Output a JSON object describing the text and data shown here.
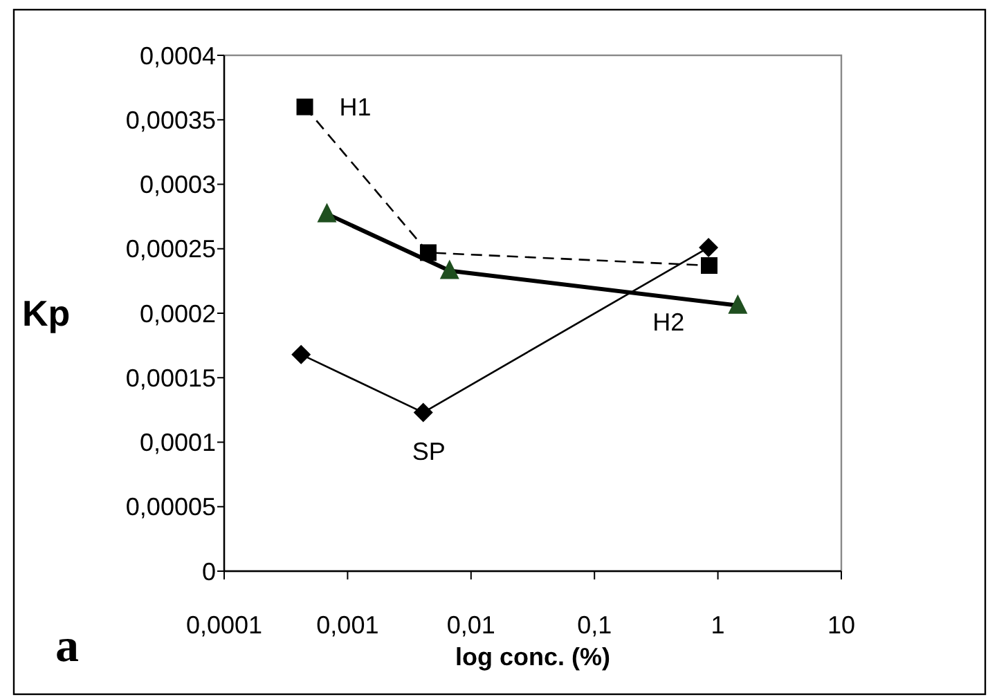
{
  "chart_data": {
    "type": "line",
    "xlabel": "log conc. (%)",
    "ylabel": "Kp",
    "log": "x",
    "xlim": [
      0.0001,
      10
    ],
    "ylim": [
      0,
      0.0004
    ],
    "xticks": [
      {
        "value": 0.0001,
        "label": "0,0001"
      },
      {
        "value": 0.001,
        "label": "0,001"
      },
      {
        "value": 0.01,
        "label": "0,01"
      },
      {
        "value": 0.1,
        "label": "0,1"
      },
      1,
      10
    ],
    "yticks": [
      0,
      {
        "value": 5e-05,
        "label": "0,00005"
      },
      {
        "value": 0.0001,
        "label": "0,0001"
      },
      {
        "value": 0.00015,
        "label": "0,00015"
      },
      {
        "value": 0.0002,
        "label": "0,0002"
      },
      {
        "value": 0.00025,
        "label": "0,00025"
      },
      {
        "value": 0.0003,
        "label": "0,0003"
      },
      {
        "value": 0.00035,
        "label": "0,00035"
      },
      {
        "value": 0.0004,
        "label": "0,0004"
      }
    ],
    "grid": false,
    "series": [
      {
        "name": "H1",
        "color": "#000000",
        "marker": "square",
        "line_style": "dashed",
        "x": [
          0.00045,
          0.0045,
          0.85
        ],
        "values": [
          0.00036,
          0.000247,
          0.000237
        ]
      },
      {
        "name": "H2",
        "color": "#000000",
        "colors": [
          "#1f4f1f",
          "#1f4f1f",
          "#1f4f1f"
        ],
        "marker": "triangle",
        "line_style": "solid",
        "x": [
          0.00068,
          0.0067,
          1.45
        ],
        "values": [
          0.000277,
          0.000233,
          0.000206
        ]
      },
      {
        "name": "SP",
        "color": "#000000",
        "marker": "diamond",
        "line_style": "solid",
        "x": [
          0.00042,
          0.0041,
          0.84
        ],
        "values": [
          0.000168,
          0.000123,
          0.000251
        ]
      }
    ],
    "annotations": [
      "a"
    ]
  }
}
